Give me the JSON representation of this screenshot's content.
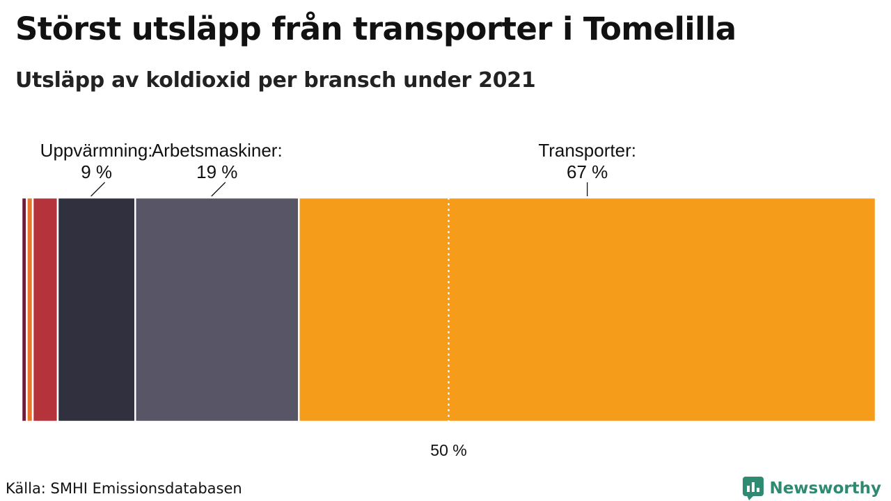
{
  "header": {
    "title": "Störst utsläpp från transporter i Tomelilla",
    "subtitle": "Utsläpp av koldioxid per bransch under 2021"
  },
  "footer": {
    "source": "Källa: SMHI Emissionsdatabasen",
    "brand": "Newsworthy",
    "brand_icon": "newsworthy-logo-icon",
    "brand_color": "#2f8a72"
  },
  "chart_data": {
    "type": "bar",
    "orientation": "horizontal-stacked-100",
    "title": "Störst utsläpp från transporter i Tomelilla",
    "subtitle": "Utsläpp av koldioxid per bransch under 2021",
    "unit": "%",
    "xlim": [
      0,
      100
    ],
    "grid": false,
    "reference_line": {
      "value": 50,
      "label": "50 %",
      "style": "dotted",
      "color": "#ffffff"
    },
    "series": [
      {
        "name": "",
        "value": 0.6,
        "color": "#6e1c3a"
      },
      {
        "name": "",
        "value": 0.7,
        "color": "#e8752a"
      },
      {
        "name": "",
        "value": 2.9,
        "color": "#b5343c"
      },
      {
        "name": "Uppvärmning",
        "value": 9,
        "color": "#31303f",
        "label_line1": "Uppvärmning:",
        "label_line2": "9 %"
      },
      {
        "name": "Arbetsmaskiner",
        "value": 19,
        "color": "#585666",
        "label_line1": "Arbetsmaskiner:",
        "label_line2": "19 %"
      },
      {
        "name": "Transporter",
        "value": 67,
        "color": "#f59d1a",
        "label_line1": "Transporter:",
        "label_line2": "67 %"
      }
    ]
  }
}
